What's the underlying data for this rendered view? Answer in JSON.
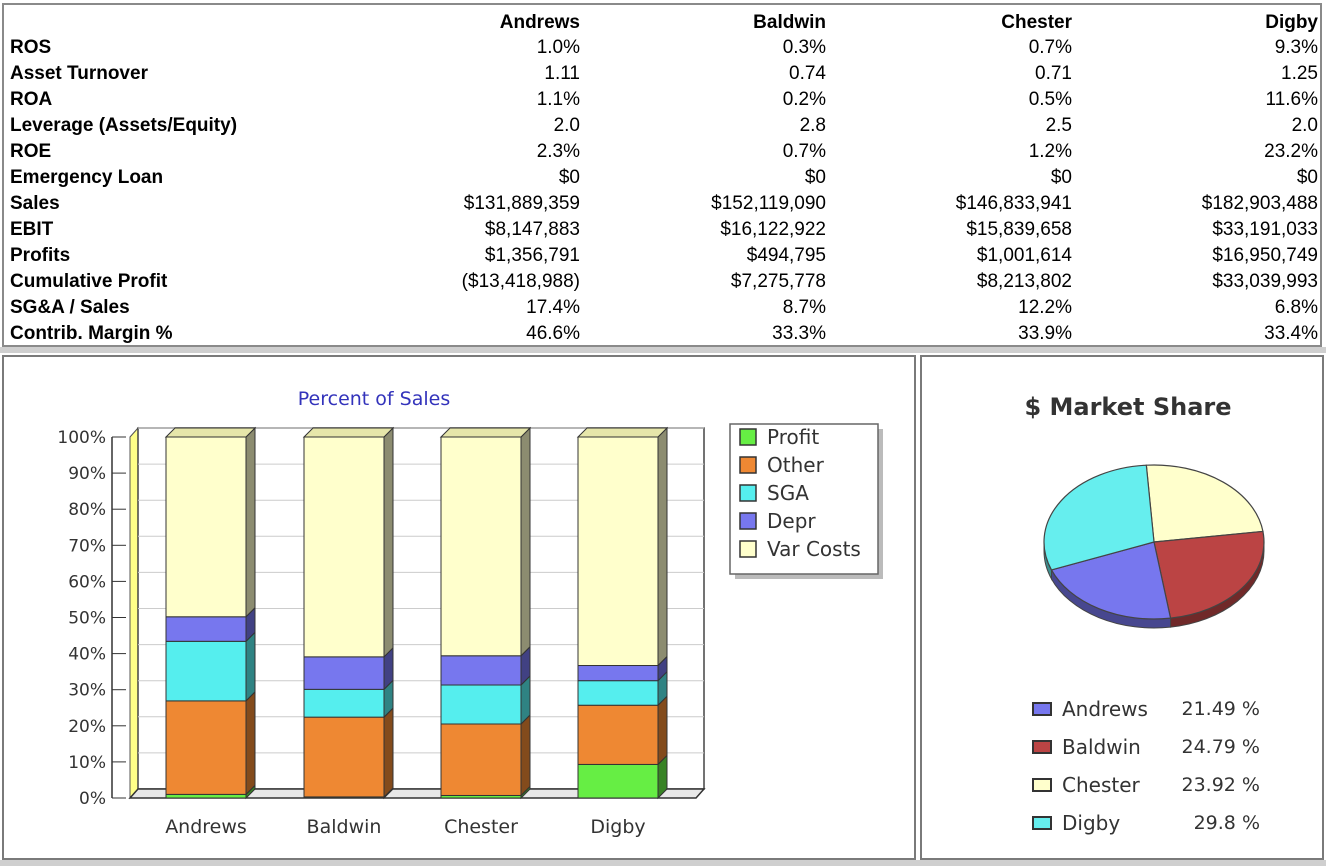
{
  "table": {
    "columns": [
      "Andrews",
      "Baldwin",
      "Chester",
      "Digby"
    ],
    "rows": [
      {
        "label": "ROS",
        "values": [
          "1.0%",
          "0.3%",
          "0.7%",
          "9.3%"
        ]
      },
      {
        "label": "Asset Turnover",
        "values": [
          "1.11",
          "0.74",
          "0.71",
          "1.25"
        ]
      },
      {
        "label": "ROA",
        "values": [
          "1.1%",
          "0.2%",
          "0.5%",
          "11.6%"
        ]
      },
      {
        "label": "Leverage (Assets/Equity)",
        "values": [
          "2.0",
          "2.8",
          "2.5",
          "2.0"
        ]
      },
      {
        "label": "ROE",
        "values": [
          "2.3%",
          "0.7%",
          "1.2%",
          "23.2%"
        ]
      },
      {
        "label": "Emergency Loan",
        "values": [
          "$0",
          "$0",
          "$0",
          "$0"
        ]
      },
      {
        "label": "Sales",
        "values": [
          "$131,889,359",
          "$152,119,090",
          "$146,833,941",
          "$182,903,488"
        ]
      },
      {
        "label": "EBIT",
        "values": [
          "$8,147,883",
          "$16,122,922",
          "$15,839,658",
          "$33,191,033"
        ]
      },
      {
        "label": "Profits",
        "values": [
          "$1,356,791",
          "$494,795",
          "$1,001,614",
          "$16,950,749"
        ]
      },
      {
        "label": "Cumulative Profit",
        "values": [
          "($13,418,988)",
          "$7,275,778",
          "$8,213,802",
          "$33,039,993"
        ]
      },
      {
        "label": "SG&A / Sales",
        "values": [
          "17.4%",
          "8.7%",
          "12.2%",
          "6.8%"
        ]
      },
      {
        "label": "Contrib. Margin %",
        "values": [
          "46.6%",
          "33.3%",
          "33.9%",
          "33.4%"
        ]
      }
    ]
  },
  "chart_data": [
    {
      "type": "bar",
      "stacked": true,
      "title": "Percent of Sales",
      "categories": [
        "Andrews",
        "Baldwin",
        "Chester",
        "Digby"
      ],
      "y_ticks": [
        "0%",
        "10%",
        "20%",
        "30%",
        "40%",
        "50%",
        "60%",
        "70%",
        "80%",
        "90%",
        "100%"
      ],
      "ylim": [
        0,
        100
      ],
      "series": [
        {
          "name": "Profit",
          "color": "#66ee44",
          "values": [
            1.0,
            0.3,
            0.7,
            9.3
          ]
        },
        {
          "name": "Other",
          "color": "#ee8833",
          "values": [
            25.9,
            22.1,
            19.8,
            16.4
          ]
        },
        {
          "name": "SGA",
          "color": "#55eeee",
          "values": [
            16.5,
            7.7,
            10.8,
            6.8
          ]
        },
        {
          "name": "Depr",
          "color": "#7777ee",
          "values": [
            6.8,
            9.0,
            8.1,
            4.2
          ]
        },
        {
          "name": "Var Costs",
          "color": "#ffffcc",
          "values": [
            49.8,
            60.9,
            60.6,
            63.3
          ]
        }
      ],
      "legend": [
        "Profit",
        "Other",
        "SGA",
        "Depr",
        "Var Costs"
      ]
    },
    {
      "type": "pie",
      "title": "$ Market Share",
      "labels": [
        "Andrews",
        "Baldwin",
        "Chester",
        "Digby"
      ],
      "values": [
        21.49,
        24.79,
        23.92,
        29.8
      ],
      "value_labels": [
        "21.49 %",
        "24.79 %",
        "23.92 %",
        "29.8 %"
      ],
      "colors": [
        "#7777ee",
        "#bb4444",
        "#ffffcc",
        "#66eeee"
      ]
    }
  ]
}
